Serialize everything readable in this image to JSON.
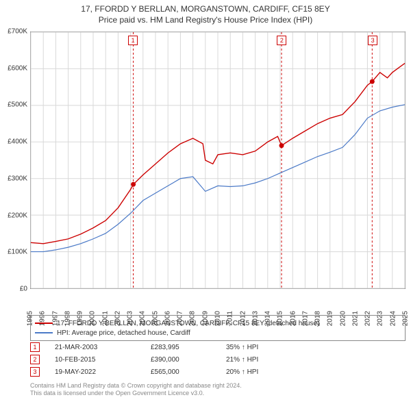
{
  "title_line1": "17, FFORDD Y BERLLAN, MORGANSTOWN, CARDIFF, CF15 8EY",
  "title_line2": "Price paid vs. HM Land Registry's House Price Index (HPI)",
  "chart": {
    "type": "line",
    "background_color": "#ffffff",
    "border_color": "#888888",
    "grid_color": "#d8d8d8",
    "x": {
      "min": 1995,
      "max": 2025,
      "ticks": [
        1995,
        1996,
        1997,
        1998,
        1999,
        2000,
        2001,
        2002,
        2003,
        2004,
        2005,
        2006,
        2007,
        2008,
        2009,
        2010,
        2011,
        2012,
        2013,
        2014,
        2015,
        2016,
        2017,
        2018,
        2019,
        2020,
        2021,
        2022,
        2023,
        2024,
        2025
      ],
      "label_fontsize": 10,
      "label_rotation": -90
    },
    "y": {
      "min": 0,
      "max": 700000,
      "ticks": [
        0,
        100000,
        200000,
        300000,
        400000,
        500000,
        600000,
        700000
      ],
      "tick_labels": [
        "£0",
        "£100K",
        "£200K",
        "£300K",
        "£400K",
        "£500K",
        "£600K",
        "£700K"
      ],
      "label_fontsize": 10
    },
    "series": [
      {
        "id": "price_paid",
        "label": "17, FFORDD Y BERLLAN, MORGANSTOWN, CARDIFF, CF15 8EY (detached house)",
        "color": "#cc0000",
        "line_width": 1.4,
        "points": [
          [
            1995.0,
            125000
          ],
          [
            1996.0,
            122000
          ],
          [
            1997.0,
            128000
          ],
          [
            1998.0,
            135000
          ],
          [
            1999.0,
            148000
          ],
          [
            2000.0,
            165000
          ],
          [
            2001.0,
            185000
          ],
          [
            2002.0,
            220000
          ],
          [
            2003.0,
            270000
          ],
          [
            2003.22,
            283995
          ],
          [
            2004.0,
            310000
          ],
          [
            2005.0,
            340000
          ],
          [
            2006.0,
            370000
          ],
          [
            2007.0,
            395000
          ],
          [
            2008.0,
            410000
          ],
          [
            2008.8,
            395000
          ],
          [
            2009.0,
            350000
          ],
          [
            2009.6,
            340000
          ],
          [
            2010.0,
            365000
          ],
          [
            2011.0,
            370000
          ],
          [
            2012.0,
            365000
          ],
          [
            2013.0,
            375000
          ],
          [
            2014.0,
            400000
          ],
          [
            2014.8,
            415000
          ],
          [
            2015.11,
            390000
          ],
          [
            2016.0,
            410000
          ],
          [
            2017.0,
            430000
          ],
          [
            2018.0,
            450000
          ],
          [
            2019.0,
            465000
          ],
          [
            2020.0,
            475000
          ],
          [
            2021.0,
            510000
          ],
          [
            2022.0,
            555000
          ],
          [
            2022.38,
            565000
          ],
          [
            2023.0,
            590000
          ],
          [
            2023.6,
            575000
          ],
          [
            2024.0,
            590000
          ],
          [
            2024.6,
            605000
          ],
          [
            2025.0,
            615000
          ]
        ]
      },
      {
        "id": "hpi",
        "label": "HPI: Average price, detached house, Cardiff",
        "color": "#4a79c7",
        "line_width": 1.2,
        "points": [
          [
            1995.0,
            100000
          ],
          [
            1996.0,
            100000
          ],
          [
            1997.0,
            105000
          ],
          [
            1998.0,
            112000
          ],
          [
            1999.0,
            122000
          ],
          [
            2000.0,
            135000
          ],
          [
            2001.0,
            150000
          ],
          [
            2002.0,
            175000
          ],
          [
            2003.0,
            205000
          ],
          [
            2004.0,
            240000
          ],
          [
            2005.0,
            260000
          ],
          [
            2006.0,
            280000
          ],
          [
            2007.0,
            300000
          ],
          [
            2008.0,
            305000
          ],
          [
            2009.0,
            265000
          ],
          [
            2010.0,
            280000
          ],
          [
            2011.0,
            278000
          ],
          [
            2012.0,
            280000
          ],
          [
            2013.0,
            288000
          ],
          [
            2014.0,
            300000
          ],
          [
            2015.0,
            315000
          ],
          [
            2016.0,
            330000
          ],
          [
            2017.0,
            345000
          ],
          [
            2018.0,
            360000
          ],
          [
            2019.0,
            372000
          ],
          [
            2020.0,
            385000
          ],
          [
            2021.0,
            420000
          ],
          [
            2022.0,
            465000
          ],
          [
            2023.0,
            485000
          ],
          [
            2024.0,
            495000
          ],
          [
            2025.0,
            502000
          ]
        ]
      }
    ],
    "event_markers": [
      {
        "num": "1",
        "x": 2003.22,
        "y": 283995,
        "line_color": "#cc0000",
        "dash": "3,3"
      },
      {
        "num": "2",
        "x": 2015.11,
        "y": 390000,
        "line_color": "#cc0000",
        "dash": "3,3"
      },
      {
        "num": "3",
        "x": 2022.38,
        "y": 565000,
        "line_color": "#cc0000",
        "dash": "3,3"
      }
    ],
    "marker_radius": 3.5,
    "marker_fill": "#cc0000"
  },
  "legend": {
    "border_color": "#888888",
    "fontsize": 10,
    "items": [
      {
        "color": "#cc0000",
        "label": "17, FFORDD Y BERLLAN, MORGANSTOWN, CARDIFF, CF15 8EY (detached house)"
      },
      {
        "color": "#4a79c7",
        "label": "HPI: Average price, detached house, Cardiff"
      }
    ]
  },
  "events_table": {
    "fontsize": 10,
    "arrow_glyph": "↑",
    "rows": [
      {
        "num": "1",
        "date": "21-MAR-2003",
        "price": "£283,995",
        "pct": "35% ↑ HPI"
      },
      {
        "num": "2",
        "date": "10-FEB-2015",
        "price": "£390,000",
        "pct": "21% ↑ HPI"
      },
      {
        "num": "3",
        "date": "19-MAY-2022",
        "price": "£565,000",
        "pct": "20% ↑ HPI"
      }
    ]
  },
  "attribution_line1": "Contains HM Land Registry data © Crown copyright and database right 2024.",
  "attribution_line2": "This data is licensed under the Open Government Licence v3.0.",
  "attribution_color": "#888888"
}
